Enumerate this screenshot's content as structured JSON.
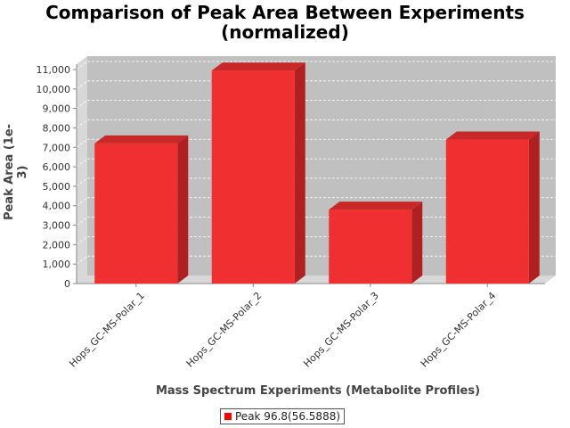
{
  "title_line1": "Comparison of Peak Area Between Experiments",
  "title_line2": "(normalized)",
  "chart_data": {
    "type": "bar",
    "title": "Comparison of Peak Area Between Experiments (normalized)",
    "xlabel": "Mass Spectrum Experiments (Metabolite Profiles)",
    "ylabel": "Peak Area (1e-3)",
    "categories": [
      "Hops_GC-MS-Polar_1",
      "Hops_GC-MS-Polar_2",
      "Hops_GC-MS-Polar_3",
      "Hops_GC-MS-Polar_4"
    ],
    "series": [
      {
        "name": "Peak 96.8(56.5888)",
        "values": [
          7200,
          10950,
          3800,
          7400
        ]
      }
    ],
    "ylim": [
      0,
      11000
    ],
    "yticks": [
      0,
      1000,
      2000,
      3000,
      4000,
      5000,
      6000,
      7000,
      8000,
      9000,
      10000,
      11000
    ],
    "ytick_labels": [
      "0",
      "1,000",
      "2,000",
      "3,000",
      "4,000",
      "5,000",
      "6,000",
      "7,000",
      "8,000",
      "9,000",
      "10,000",
      "11,000"
    ],
    "grid": true,
    "legend_position": "bottom-center",
    "colors": {
      "bar": "#f03030",
      "bar_top": "#c82828",
      "bar_side": "#b02020",
      "plot_bg": "#c0c0c0",
      "wall_side": "#d8d8d8",
      "floor": "#d8d8d8",
      "gridline": "#ffffff",
      "legend_swatch": "#ff0000"
    }
  },
  "legend": {
    "label": "Peak 96.8(56.5888)"
  }
}
